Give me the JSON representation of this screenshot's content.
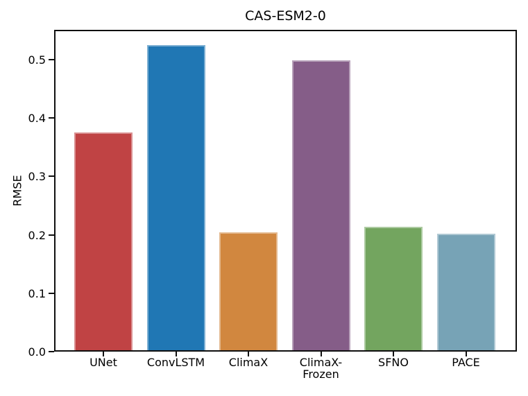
{
  "chart_data": {
    "type": "bar",
    "title": "CAS-ESM2-0",
    "xlabel": "",
    "ylabel": "RMSE",
    "categories": [
      "UNet",
      "ConvLSTM",
      "ClimaX",
      "ClimaX-\nFrozen",
      "SFNO",
      "PACE"
    ],
    "values": [
      0.373,
      0.522,
      0.202,
      0.496,
      0.211,
      0.2
    ],
    "bar_colors": [
      "#c04344",
      "#2077b4",
      "#d1873f",
      "#855d88",
      "#73a55f",
      "#77a3b6"
    ],
    "ylim": [
      0,
      0.55
    ],
    "yticks": [
      "0.0",
      "0.1",
      "0.2",
      "0.3",
      "0.4",
      "0.5"
    ],
    "grid": false,
    "legend_position": "none",
    "spine_color": "#0f0f0f"
  }
}
